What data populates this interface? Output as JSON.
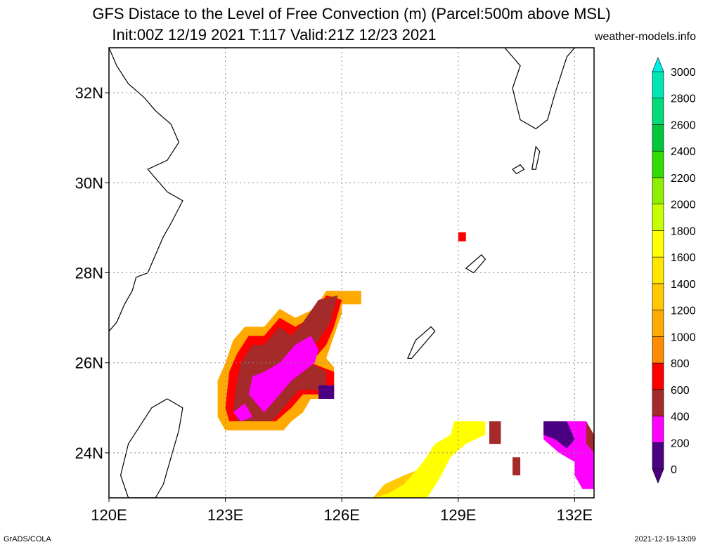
{
  "title_line1": "GFS Distace to the Level of Free Convection (m) (Parcel:500m above MSL)",
  "title_line2": "Init:00Z 12/19 2021 T:117 Valid:21Z 12/23 2021",
  "site": "weather-models.info",
  "footer_left": "GrADS/COLA",
  "footer_right": "2021-12-19-13:09",
  "map": {
    "lon_range": [
      120,
      132.5
    ],
    "lat_range": [
      23,
      33
    ],
    "lon_ticks": [
      {
        "v": 120,
        "label": "120E"
      },
      {
        "v": 123,
        "label": "123E"
      },
      {
        "v": 126,
        "label": "126E"
      },
      {
        "v": 129,
        "label": "129E"
      },
      {
        "v": 132,
        "label": "132E"
      }
    ],
    "lat_ticks": [
      {
        "v": 24,
        "label": "24N"
      },
      {
        "v": 26,
        "label": "26N"
      },
      {
        "v": 28,
        "label": "28N"
      },
      {
        "v": 30,
        "label": "30N"
      },
      {
        "v": 32,
        "label": "32N"
      }
    ],
    "grid": "dotted"
  },
  "colorbar": {
    "labels": [
      "0",
      "200",
      "400",
      "600",
      "800",
      "1000",
      "1200",
      "1400",
      "1600",
      "1800",
      "2000",
      "2200",
      "2400",
      "2600",
      "2800",
      "3000"
    ],
    "colors": [
      "#4b0082",
      "#ff00ff",
      "#a52a2a",
      "#ff0000",
      "#ff8c00",
      "#ffaa00",
      "#ffc800",
      "#ffe600",
      "#ffff00",
      "#c8ff00",
      "#8cf000",
      "#32dc00",
      "#00c83c",
      "#00dc78",
      "#00e6b4",
      "#00f0e6"
    ],
    "min_color": "#4b0082",
    "max_color": "#00f0e6"
  },
  "fields": [
    {
      "name": "main-blob-outer",
      "fill": "#ffaa00",
      "coords": [
        [
          122.8,
          25.3
        ],
        [
          122.8,
          24.8
        ],
        [
          123.0,
          24.5
        ],
        [
          124.5,
          24.5
        ],
        [
          124.7,
          24.7
        ],
        [
          125.0,
          24.9
        ],
        [
          125.2,
          25.2
        ],
        [
          125.8,
          25.2
        ],
        [
          125.8,
          25.9
        ],
        [
          125.6,
          26.1
        ],
        [
          125.8,
          26.6
        ],
        [
          126.0,
          27.1
        ],
        [
          126.0,
          27.3
        ],
        [
          126.5,
          27.3
        ],
        [
          126.5,
          27.6
        ],
        [
          125.6,
          27.6
        ],
        [
          125.3,
          27.2
        ],
        [
          124.8,
          27.0
        ],
        [
          124.4,
          27.2
        ],
        [
          124.0,
          26.8
        ],
        [
          123.5,
          26.8
        ],
        [
          123.2,
          26.5
        ],
        [
          123.0,
          26.0
        ],
        [
          122.8,
          25.6
        ]
      ]
    },
    {
      "name": "main-blob-red",
      "fill": "#ff0000",
      "coords": [
        [
          123.0,
          25.0
        ],
        [
          123.1,
          24.7
        ],
        [
          124.3,
          24.7
        ],
        [
          124.7,
          25.0
        ],
        [
          125.0,
          25.3
        ],
        [
          125.8,
          25.3
        ],
        [
          125.8,
          25.8
        ],
        [
          125.2,
          26.0
        ],
        [
          125.6,
          26.4
        ],
        [
          125.8,
          26.8
        ],
        [
          126.0,
          27.4
        ],
        [
          125.6,
          27.5
        ],
        [
          125.2,
          27.0
        ],
        [
          124.8,
          26.8
        ],
        [
          124.4,
          27.0
        ],
        [
          124.0,
          26.6
        ],
        [
          123.6,
          26.6
        ],
        [
          123.3,
          26.2
        ],
        [
          123.1,
          25.8
        ]
      ]
    },
    {
      "name": "main-blob-brown",
      "fill": "#a52a2a",
      "coords": [
        [
          123.2,
          25.0
        ],
        [
          123.3,
          24.7
        ],
        [
          124.2,
          24.7
        ],
        [
          124.6,
          25.1
        ],
        [
          124.9,
          25.4
        ],
        [
          125.6,
          25.4
        ],
        [
          125.6,
          25.8
        ],
        [
          125.0,
          26.1
        ],
        [
          125.4,
          26.5
        ],
        [
          125.7,
          26.9
        ],
        [
          125.9,
          27.5
        ],
        [
          125.4,
          27.4
        ],
        [
          125.0,
          26.9
        ],
        [
          124.7,
          26.6
        ],
        [
          124.4,
          26.8
        ],
        [
          124.0,
          26.4
        ],
        [
          123.7,
          26.4
        ],
        [
          123.4,
          26.0
        ],
        [
          123.3,
          25.6
        ]
      ]
    },
    {
      "name": "main-blob-magenta-1",
      "fill": "#ff00ff",
      "coords": [
        [
          123.6,
          25.3
        ],
        [
          124.0,
          24.9
        ],
        [
          124.3,
          25.2
        ],
        [
          124.7,
          25.6
        ],
        [
          125.0,
          25.8
        ],
        [
          125.3,
          26.0
        ],
        [
          125.4,
          26.3
        ],
        [
          125.2,
          26.6
        ],
        [
          124.8,
          26.4
        ],
        [
          124.4,
          26.0
        ],
        [
          124.0,
          25.8
        ],
        [
          123.7,
          25.7
        ]
      ]
    },
    {
      "name": "main-blob-magenta-2",
      "fill": "#ff00ff",
      "coords": [
        [
          123.2,
          24.9
        ],
        [
          123.4,
          24.7
        ],
        [
          123.7,
          24.8
        ],
        [
          123.5,
          25.1
        ]
      ]
    },
    {
      "name": "main-blob-purple",
      "fill": "#4b0082",
      "coords": [
        [
          125.4,
          25.2
        ],
        [
          125.4,
          25.5
        ],
        [
          125.8,
          25.5
        ],
        [
          125.8,
          25.2
        ]
      ]
    },
    {
      "name": "north-dot",
      "fill": "#ff0000",
      "coords": [
        [
          129.0,
          28.7
        ],
        [
          129.0,
          28.9
        ],
        [
          129.2,
          28.9
        ],
        [
          129.2,
          28.7
        ]
      ]
    },
    {
      "name": "south-yellow-strip",
      "fill": "#ffff00",
      "coords": [
        [
          126.8,
          23.0
        ],
        [
          127.3,
          23.2
        ],
        [
          127.8,
          23.5
        ],
        [
          128.1,
          23.8
        ],
        [
          128.4,
          24.2
        ],
        [
          128.8,
          24.4
        ],
        [
          128.9,
          24.7
        ],
        [
          129.7,
          24.7
        ],
        [
          129.7,
          24.4
        ],
        [
          129.2,
          24.2
        ],
        [
          128.8,
          23.9
        ],
        [
          128.5,
          23.4
        ],
        [
          128.2,
          23.0
        ]
      ]
    },
    {
      "name": "south-orange-strip",
      "fill": "#ffc800",
      "coords": [
        [
          126.8,
          23.0
        ],
        [
          127.2,
          23.1
        ],
        [
          127.6,
          23.3
        ],
        [
          127.9,
          23.6
        ],
        [
          127.6,
          23.5
        ],
        [
          127.1,
          23.3
        ]
      ]
    },
    {
      "name": "east-brown-1",
      "fill": "#a52a2a",
      "coords": [
        [
          129.8,
          24.2
        ],
        [
          129.8,
          24.7
        ],
        [
          130.1,
          24.7
        ],
        [
          130.1,
          24.2
        ]
      ]
    },
    {
      "name": "east-brown-2",
      "fill": "#a52a2a",
      "coords": [
        [
          130.4,
          23.5
        ],
        [
          130.4,
          23.9
        ],
        [
          130.6,
          23.9
        ],
        [
          130.6,
          23.5
        ]
      ]
    },
    {
      "name": "east-magenta",
      "fill": "#ff00ff",
      "coords": [
        [
          131.2,
          24.7
        ],
        [
          132.3,
          24.7
        ],
        [
          132.3,
          24.2
        ],
        [
          132.5,
          24.0
        ],
        [
          132.5,
          23.2
        ],
        [
          132.2,
          23.2
        ],
        [
          132.0,
          23.5
        ],
        [
          132.0,
          23.8
        ],
        [
          131.6,
          24.0
        ],
        [
          131.2,
          24.3
        ]
      ]
    },
    {
      "name": "east-brown-3",
      "fill": "#a52a2a",
      "coords": [
        [
          132.3,
          24.7
        ],
        [
          132.5,
          24.4
        ],
        [
          132.5,
          24.0
        ],
        [
          132.3,
          24.2
        ]
      ]
    },
    {
      "name": "east-purple",
      "fill": "#4b0082",
      "coords": [
        [
          131.2,
          24.7
        ],
        [
          131.8,
          24.7
        ],
        [
          132.0,
          24.3
        ],
        [
          131.8,
          24.1
        ],
        [
          131.5,
          24.3
        ],
        [
          131.2,
          24.4
        ]
      ]
    }
  ],
  "coastlines": [
    {
      "name": "china-coast",
      "coords": [
        [
          120.0,
          26.7
        ],
        [
          120.2,
          26.9
        ],
        [
          120.4,
          27.3
        ],
        [
          120.6,
          27.6
        ],
        [
          120.7,
          27.9
        ],
        [
          121.0,
          28.0
        ],
        [
          121.2,
          28.4
        ],
        [
          121.4,
          28.8
        ],
        [
          121.6,
          29.1
        ],
        [
          121.9,
          29.6
        ],
        [
          121.5,
          29.8
        ],
        [
          121.2,
          30.1
        ],
        [
          121.0,
          30.3
        ],
        [
          121.5,
          30.5
        ],
        [
          121.8,
          30.9
        ],
        [
          121.6,
          31.3
        ],
        [
          121.2,
          31.6
        ],
        [
          120.9,
          31.9
        ],
        [
          120.5,
          32.2
        ],
        [
          120.2,
          32.6
        ],
        [
          120.0,
          33.0
        ]
      ]
    },
    {
      "name": "taiwan-coast",
      "coords": [
        [
          121.5,
          25.2
        ],
        [
          121.9,
          25.0
        ],
        [
          121.8,
          24.5
        ],
        [
          121.6,
          23.9
        ],
        [
          121.4,
          23.3
        ],
        [
          121.2,
          23.0
        ],
        [
          120.5,
          23.0
        ],
        [
          120.3,
          23.5
        ],
        [
          120.5,
          24.2
        ],
        [
          120.8,
          24.6
        ],
        [
          121.1,
          25.0
        ]
      ]
    },
    {
      "name": "okinawa-island",
      "coords": [
        [
          127.7,
          26.1
        ],
        [
          127.9,
          26.5
        ],
        [
          128.3,
          26.8
        ],
        [
          128.4,
          26.7
        ],
        [
          128.0,
          26.3
        ],
        [
          127.8,
          26.1
        ]
      ]
    },
    {
      "name": "amami-island",
      "coords": [
        [
          129.2,
          28.1
        ],
        [
          129.6,
          28.4
        ],
        [
          129.7,
          28.3
        ],
        [
          129.4,
          28.0
        ]
      ]
    },
    {
      "name": "kyushu-coast",
      "coords": [
        [
          130.2,
          33.0
        ],
        [
          130.6,
          32.6
        ],
        [
          130.4,
          32.1
        ],
        [
          130.6,
          31.4
        ],
        [
          131.0,
          31.2
        ],
        [
          131.3,
          31.4
        ],
        [
          131.5,
          32.0
        ],
        [
          131.8,
          32.8
        ],
        [
          132.0,
          33.0
        ]
      ]
    },
    {
      "name": "tanegashima",
      "coords": [
        [
          130.9,
          30.3
        ],
        [
          131.0,
          30.8
        ],
        [
          131.1,
          30.7
        ],
        [
          131.0,
          30.3
        ]
      ]
    },
    {
      "name": "yakushima",
      "coords": [
        [
          130.4,
          30.3
        ],
        [
          130.6,
          30.4
        ],
        [
          130.7,
          30.3
        ],
        [
          130.5,
          30.2
        ]
      ]
    }
  ]
}
